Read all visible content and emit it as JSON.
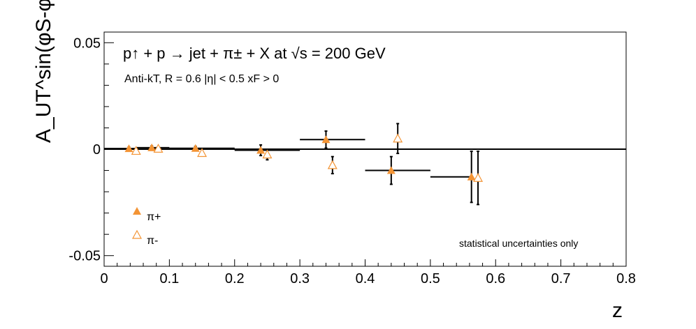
{
  "chart_data": {
    "type": "scatter",
    "title": "p↑ + p → jet + π± + X at √s = 200 GeV",
    "subtitle": "Anti-kT, R = 0.6   |η| < 0.5   xF > 0",
    "xlabel": "z",
    "ylabel": "A_UT^sin(φS-φh)",
    "xlim": [
      0,
      0.8
    ],
    "ylim": [
      -0.055,
      0.055
    ],
    "x_ticks": [
      "0",
      "0.1",
      "0.2",
      "0.3",
      "0.4",
      "0.5",
      "0.6",
      "0.7",
      "0.8"
    ],
    "y_ticks": [
      "-0.05",
      "0",
      "0.05"
    ],
    "legend_position": "bottom-left",
    "annotation": "statistical uncertainties only",
    "annotation_color": "#e00000",
    "series": [
      {
        "name": "π+",
        "marker": "filled-triangle",
        "color": "#f39435",
        "points": [
          {
            "x": 0.038,
            "y": 0.0003,
            "xerr": [
              0.038,
              0.012
            ],
            "yerr": 0.0007
          },
          {
            "x": 0.073,
            "y": 0.0007,
            "xerr": [
              0.023,
              0.027
            ],
            "yerr": 0.0008
          },
          {
            "x": 0.14,
            "y": 0.0004,
            "xerr": [
              0.04,
              0.06
            ],
            "yerr": 0.0009
          },
          {
            "x": 0.24,
            "y": -0.0005,
            "xerr": [
              0.04,
              0.06
            ],
            "yerr": 0.0025
          },
          {
            "x": 0.34,
            "y": 0.0045,
            "xerr": [
              0.04,
              0.06
            ],
            "yerr": 0.004
          },
          {
            "x": 0.44,
            "y": -0.01,
            "xerr": [
              0.04,
              0.06
            ],
            "yerr": 0.0065
          },
          {
            "x": 0.563,
            "y": -0.013,
            "xerr": [
              0.063,
              0.0
            ],
            "yerr": 0.012
          }
        ]
      },
      {
        "name": "π-",
        "marker": "open-triangle",
        "color": "#f39435",
        "points": [
          {
            "x": 0.049,
            "y": -0.0008,
            "yerr": 0.0008
          },
          {
            "x": 0.083,
            "y": 0.0002,
            "yerr": 0.0008
          },
          {
            "x": 0.15,
            "y": -0.0018,
            "yerr": 0.001
          },
          {
            "x": 0.25,
            "y": -0.0025,
            "yerr": 0.0025
          },
          {
            "x": 0.35,
            "y": -0.0075,
            "yerr": 0.004
          },
          {
            "x": 0.45,
            "y": 0.005,
            "yerr": 0.007
          },
          {
            "x": 0.573,
            "y": -0.0135,
            "yerr": 0.0125
          }
        ]
      }
    ]
  }
}
